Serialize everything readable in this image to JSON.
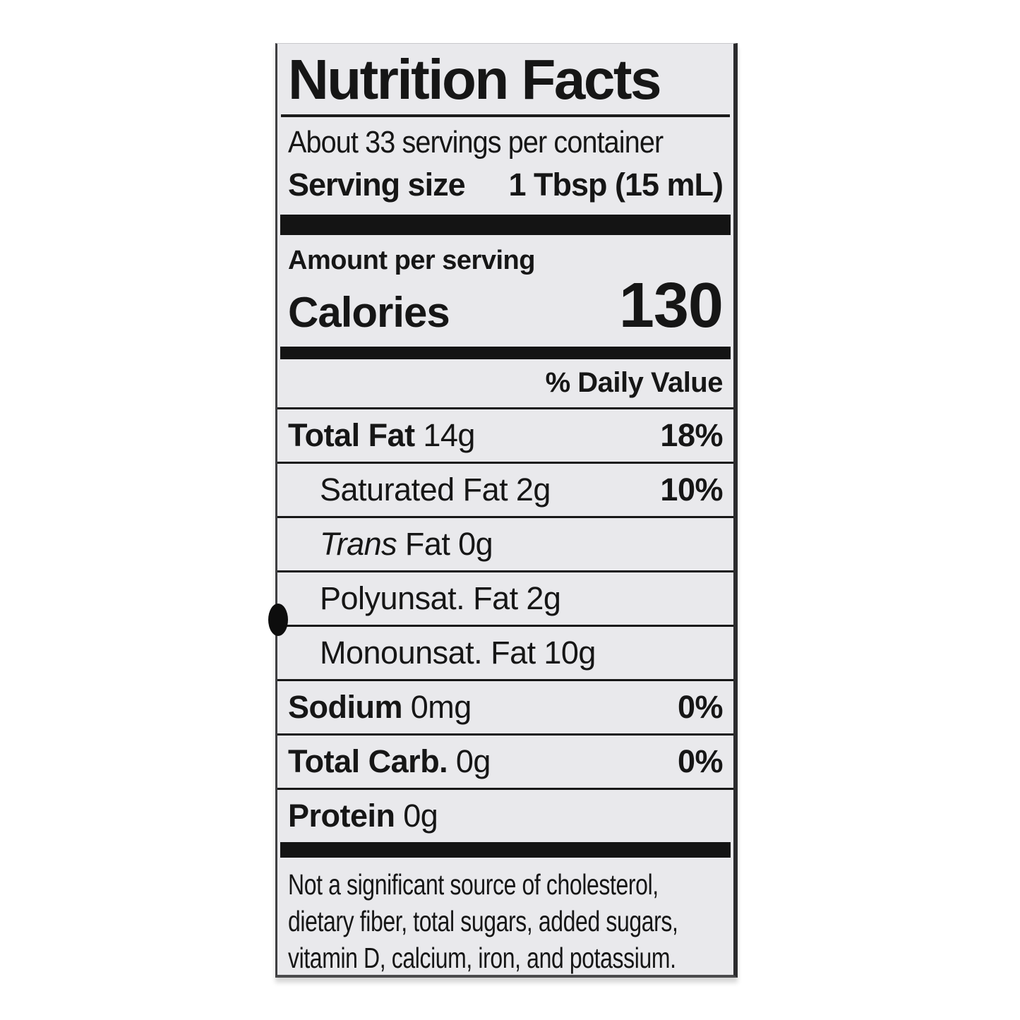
{
  "page": {
    "background_color": "#ffffff"
  },
  "label": {
    "background_color": "#e9e9ec",
    "text_color": "#161616",
    "bar_color": "#141414",
    "title": "Nutrition Facts",
    "servings_per_container": "About 33 servings per container",
    "serving_size": {
      "label": "Serving size",
      "value": "1 Tbsp (15 mL)"
    },
    "amount_per_serving": "Amount per serving",
    "calories": {
      "label": "Calories",
      "value": "130"
    },
    "daily_value_header": "% Daily Value",
    "nutrients": [
      {
        "name": "Total Fat",
        "amount": "14g",
        "dv": "18%"
      },
      {
        "name": "Saturated Fat",
        "amount": "2g",
        "dv": "10%"
      },
      {
        "name_italic": "Trans",
        "name": "Fat",
        "amount": "0g",
        "dv": ""
      },
      {
        "name": "Polyunsat. Fat",
        "amount": "2g",
        "dv": ""
      },
      {
        "name": "Monounsat. Fat",
        "amount": "10g",
        "dv": ""
      },
      {
        "name": "Sodium",
        "amount": "0mg",
        "dv": "0%"
      },
      {
        "name": "Total Carb.",
        "amount": "0g",
        "dv": "0%"
      },
      {
        "name": "Protein",
        "amount": "0g",
        "dv": ""
      }
    ],
    "footnote_lines": [
      "Not a significant source of cholesterol,",
      "dietary fiber, total sugars, added sugars,",
      "vitamin D, calcium, iron, and potassium."
    ]
  }
}
